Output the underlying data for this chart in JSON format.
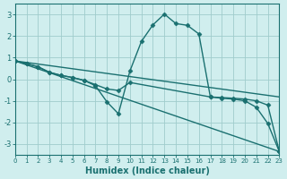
{
  "xlabel": "Humidex (Indice chaleur)",
  "xlim": [
    0,
    23
  ],
  "ylim": [
    -3.5,
    3.5
  ],
  "xticks": [
    0,
    1,
    2,
    3,
    4,
    5,
    6,
    7,
    8,
    9,
    10,
    11,
    12,
    13,
    14,
    15,
    16,
    17,
    18,
    19,
    20,
    21,
    22,
    23
  ],
  "yticks": [
    -3,
    -2,
    -1,
    0,
    1,
    2,
    3
  ],
  "bg_color": "#d0eeee",
  "line_color": "#1a7070",
  "grid_color": "#a0cccc",
  "lines": [
    {
      "x": [
        0,
        1,
        2,
        3,
        4,
        5,
        6,
        7,
        8,
        9,
        10,
        11,
        12,
        13,
        14,
        15,
        16,
        17,
        18,
        19,
        20,
        21,
        22,
        23
      ],
      "y": [
        0.85,
        0.72,
        0.58,
        0.32,
        0.18,
        0.08,
        -0.05,
        -0.3,
        -1.05,
        -1.6,
        0.38,
        1.75,
        2.52,
        3.02,
        2.58,
        2.5,
        2.1,
        -0.82,
        -0.88,
        -0.92,
        -1.0,
        -1.3,
        -2.05,
        -3.35
      ],
      "marker": "D",
      "linestyle": "-",
      "linewidth": 1.0,
      "markersize": 2.5
    },
    {
      "x": [
        0,
        1,
        2,
        3,
        4,
        5,
        6,
        7,
        8,
        9,
        10,
        17,
        18,
        19,
        20,
        21,
        22,
        23
      ],
      "y": [
        0.85,
        0.72,
        0.58,
        0.32,
        0.18,
        0.08,
        -0.05,
        -0.25,
        -0.45,
        -0.52,
        -0.15,
        -0.82,
        -0.85,
        -0.88,
        -0.92,
        -1.0,
        -1.2,
        -3.35
      ],
      "marker": "D",
      "linestyle": "-",
      "linewidth": 1.0,
      "markersize": 2.5
    },
    {
      "x": [
        0,
        23
      ],
      "y": [
        0.85,
        -0.82
      ],
      "marker": "",
      "linestyle": "-",
      "linewidth": 1.0,
      "markersize": 0
    },
    {
      "x": [
        0,
        23
      ],
      "y": [
        0.85,
        -3.35
      ],
      "marker": "",
      "linestyle": "-",
      "linewidth": 1.0,
      "markersize": 0
    }
  ]
}
